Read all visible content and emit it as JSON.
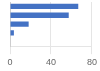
{
  "chart_data": {
    "type": "bar",
    "orientation": "horizontal",
    "categories": [
      null,
      null,
      null,
      null,
      null
    ],
    "values": [
      66.6,
      57.3,
      18.2,
      3.8,
      0.5
    ],
    "color": "#4472c4",
    "xlim": [
      0,
      80
    ],
    "xticks": [
      0,
      40,
      80
    ],
    "grid": true,
    "tick_labels": "x"
  }
}
